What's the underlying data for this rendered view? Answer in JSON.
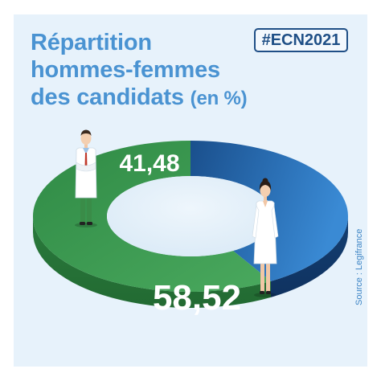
{
  "header": {
    "title_lines": [
      "Répartition",
      "hommes-femmes",
      "des candidats"
    ],
    "title_unit": "(en %)",
    "hashtag": "#ECN2021"
  },
  "source": "Source : Legifrance",
  "chart_data": {
    "type": "pie",
    "variant": "donut",
    "categories": [
      "hommes",
      "femmes"
    ],
    "values": [
      41.48,
      58.52
    ],
    "data_labels": [
      "41,48",
      "58,52"
    ],
    "colors": [
      "#1f5a9c",
      "#3f9a52"
    ],
    "legend": "none",
    "icons": [
      "male-doctor-icon",
      "female-doctor-icon"
    ]
  }
}
